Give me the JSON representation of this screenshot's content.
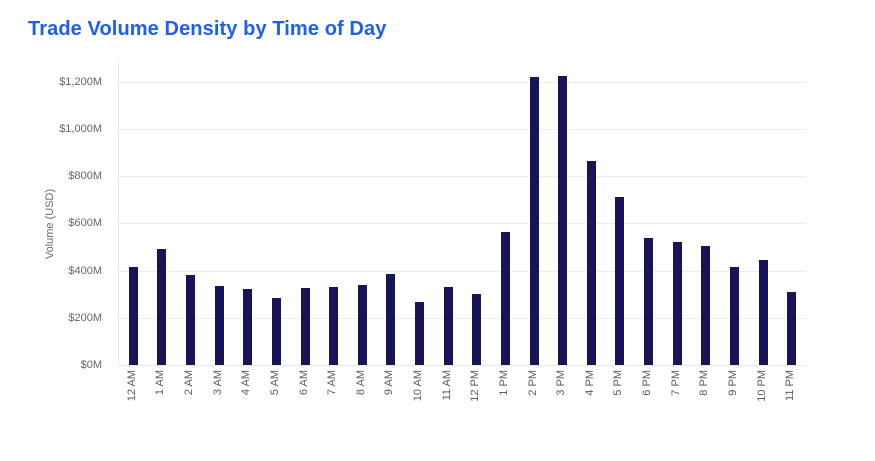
{
  "title": {
    "text": "Trade Volume Density by Time of Day",
    "color": "#1f5ef2"
  },
  "chart_data": {
    "type": "bar",
    "title": "Trade Volume Density by Time of Day",
    "xlabel": "",
    "ylabel": "Volume (USD)",
    "categories": [
      "12 AM",
      "1 AM",
      "2 AM",
      "3 AM",
      "4 AM",
      "5 AM",
      "6 AM",
      "7 AM",
      "8 AM",
      "9 AM",
      "10 AM",
      "11 AM",
      "12 PM",
      "1 PM",
      "2 PM",
      "3 PM",
      "4 PM",
      "5 PM",
      "6 PM",
      "7 PM",
      "8 PM",
      "9 PM",
      "10 PM",
      "11 PM"
    ],
    "values": [
      415,
      490,
      380,
      335,
      320,
      285,
      325,
      330,
      340,
      385,
      265,
      330,
      300,
      565,
      1220,
      1225,
      865,
      710,
      540,
      520,
      505,
      415,
      445,
      310
    ],
    "value_unit": "M USD",
    "ylim": [
      0,
      1283
    ],
    "y_ticks": [
      0,
      200,
      400,
      600,
      800,
      1000,
      1200
    ],
    "y_tick_labels": [
      "$0M",
      "$200M",
      "$400M",
      "$600M",
      "$800M",
      "$1,000M",
      "$1,200M"
    ],
    "bar_color": "#171457",
    "grid": true,
    "legend": false
  }
}
